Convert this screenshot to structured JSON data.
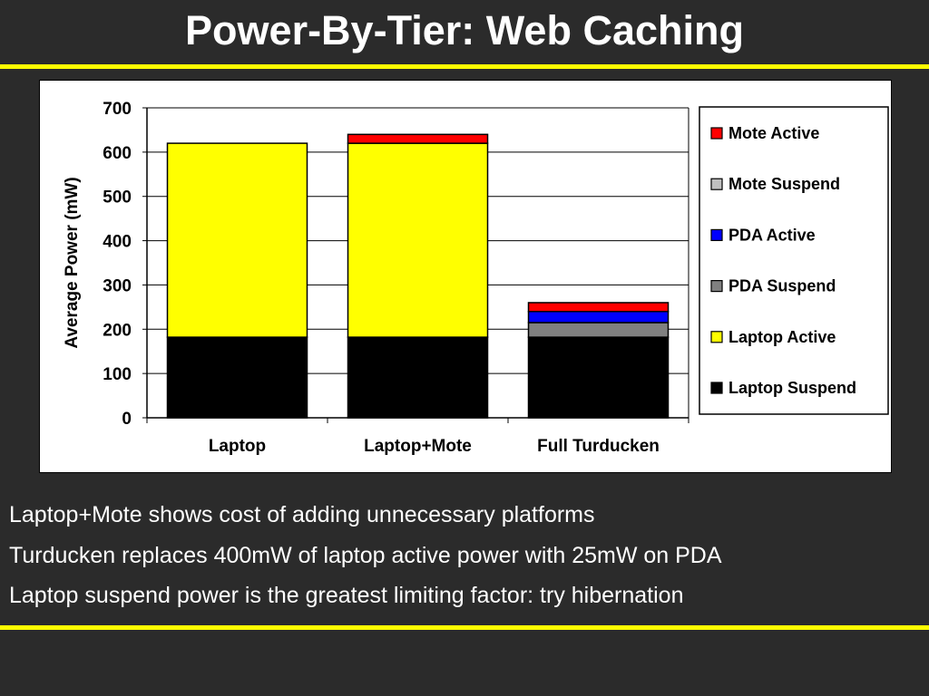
{
  "slide": {
    "title": "Power-By-Tier: Web Caching",
    "bullets": [
      "Laptop+Mote shows cost of adding unnecessary platforms",
      "Turducken replaces 400mW of laptop active power with 25mW on PDA",
      "Laptop suspend power is the greatest limiting factor: try hibernation"
    ]
  },
  "colors": {
    "accent_rule": "#ffff00",
    "background": "#2b2b2b"
  },
  "chart_data": {
    "type": "bar",
    "stacked": true,
    "title": "",
    "xlabel": "",
    "ylabel": "Average Power (mW)",
    "ylim": [
      0,
      700
    ],
    "yticks": [
      0,
      100,
      200,
      300,
      400,
      500,
      600,
      700
    ],
    "grid": true,
    "legend_position": "right",
    "categories": [
      "Laptop",
      "Laptop+Mote",
      "Full Turducken"
    ],
    "series": [
      {
        "name": "Laptop Suspend",
        "color": "#000000",
        "values": [
          182,
          182,
          182
        ]
      },
      {
        "name": "Laptop Active",
        "color": "#ffff00",
        "values": [
          438,
          438,
          0
        ]
      },
      {
        "name": "PDA Suspend",
        "color": "#808080",
        "values": [
          0,
          0,
          33
        ]
      },
      {
        "name": "PDA Active",
        "color": "#0000ff",
        "values": [
          0,
          0,
          25
        ]
      },
      {
        "name": "Mote Suspend",
        "color": "#c0c0c0",
        "values": [
          0,
          0,
          0
        ]
      },
      {
        "name": "Mote Active",
        "color": "#ff0000",
        "values": [
          0,
          20,
          20
        ]
      }
    ],
    "legend_order": [
      "Mote Active",
      "Mote Suspend",
      "PDA Active",
      "PDA Suspend",
      "Laptop Active",
      "Laptop Suspend"
    ]
  }
}
